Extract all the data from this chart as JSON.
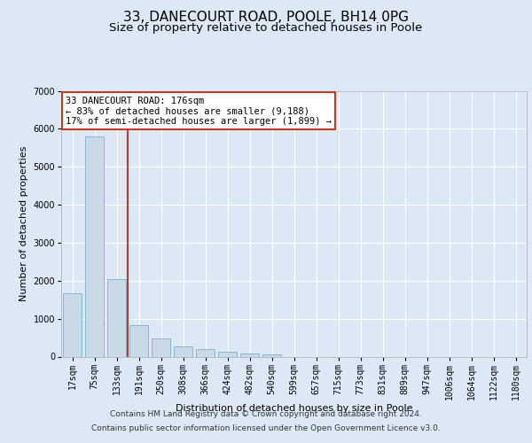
{
  "title": "33, DANECOURT ROAD, POOLE, BH14 0PG",
  "subtitle": "Size of property relative to detached houses in Poole",
  "xlabel": "Distribution of detached houses by size in Poole",
  "ylabel": "Number of detached properties",
  "categories": [
    "17sqm",
    "75sqm",
    "133sqm",
    "191sqm",
    "250sqm",
    "308sqm",
    "366sqm",
    "424sqm",
    "482sqm",
    "540sqm",
    "599sqm",
    "657sqm",
    "715sqm",
    "773sqm",
    "831sqm",
    "889sqm",
    "947sqm",
    "1006sqm",
    "1064sqm",
    "1122sqm",
    "1180sqm"
  ],
  "values": [
    1680,
    5800,
    2050,
    820,
    480,
    260,
    190,
    120,
    90,
    60,
    0,
    0,
    0,
    0,
    0,
    0,
    0,
    0,
    0,
    0,
    0
  ],
  "bar_color": "#c9d9e8",
  "bar_edge_color": "#7bafd4",
  "vline_x": 2.5,
  "vline_color": "#c0392b",
  "annotation_text": "33 DANECOURT ROAD: 176sqm\n← 83% of detached houses are smaller (9,188)\n17% of semi-detached houses are larger (1,899) →",
  "annotation_box_color": "#ffffff",
  "annotation_box_edge_color": "#c0392b",
  "background_color": "#dce8f5",
  "plot_bg_color": "#dce8f5",
  "footer_line1": "Contains HM Land Registry data © Crown copyright and database right 2024.",
  "footer_line2": "Contains public sector information licensed under the Open Government Licence v3.0.",
  "ylim": [
    0,
    7000
  ],
  "yticks": [
    0,
    1000,
    2000,
    3000,
    4000,
    5000,
    6000,
    7000
  ],
  "title_fontsize": 11,
  "subtitle_fontsize": 9.5,
  "label_fontsize": 8,
  "tick_fontsize": 7,
  "footer_fontsize": 6.5,
  "annotation_fontsize": 7.5
}
